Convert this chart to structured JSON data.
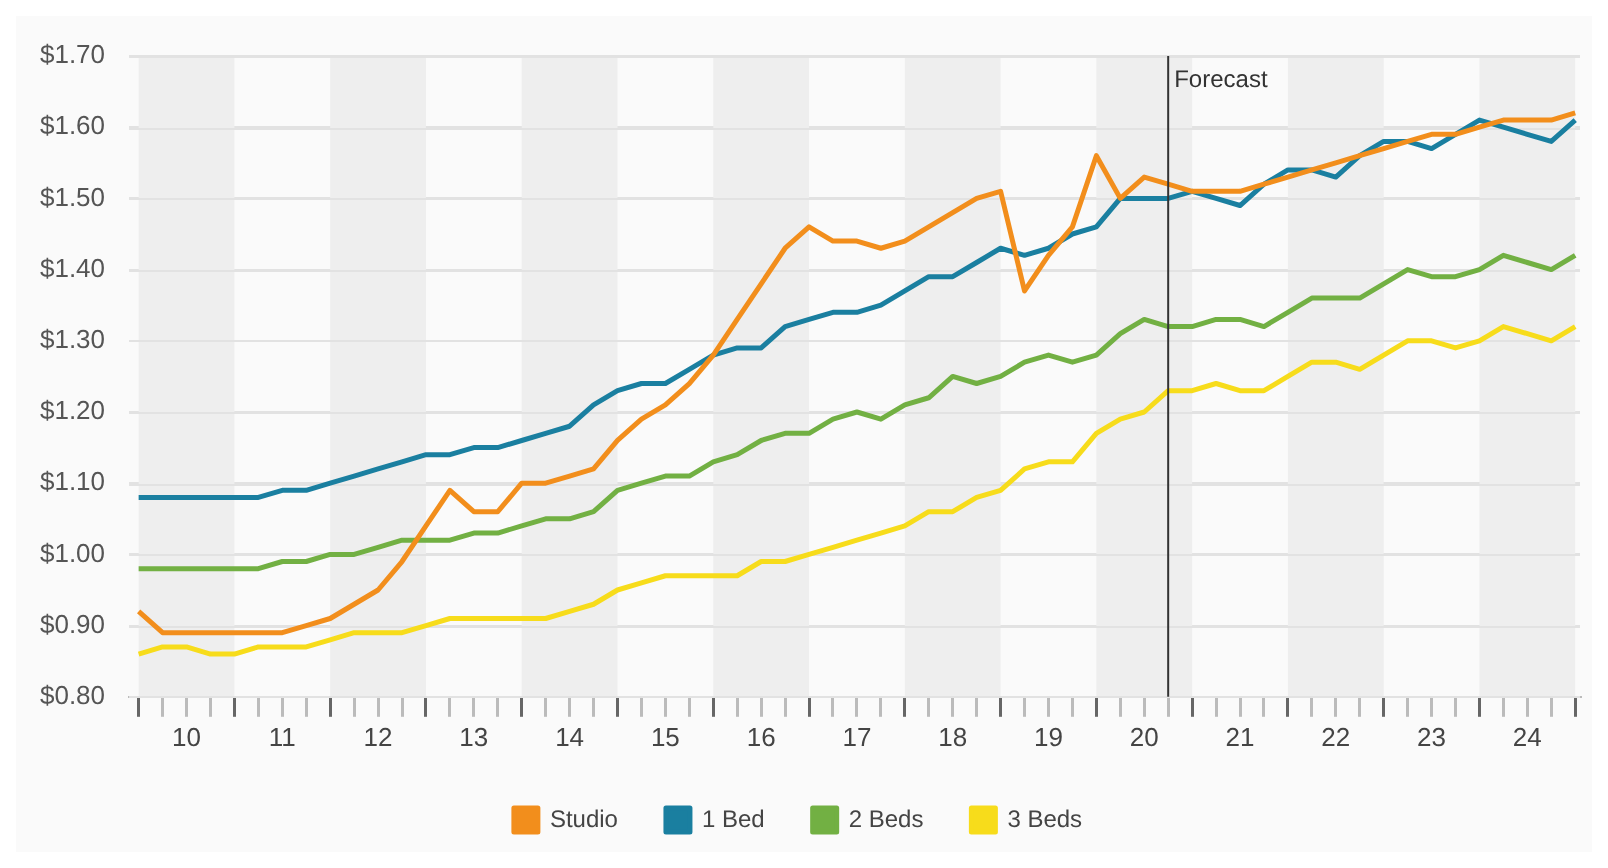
{
  "chart_data": {
    "type": "line",
    "x": [
      10,
      10.25,
      10.5,
      10.75,
      11,
      11.25,
      11.5,
      11.75,
      12,
      12.25,
      12.5,
      12.75,
      13,
      13.25,
      13.5,
      13.75,
      14,
      14.25,
      14.5,
      14.75,
      15,
      15.25,
      15.5,
      15.75,
      16,
      16.25,
      16.5,
      16.75,
      17,
      17.25,
      17.5,
      17.75,
      18,
      18.25,
      18.5,
      18.75,
      19,
      19.25,
      19.5,
      19.75,
      20,
      20.25,
      20.5,
      20.75,
      21,
      21.25,
      21.5,
      21.75,
      22,
      22.25,
      22.5,
      22.75,
      23,
      23.25,
      23.5,
      23.75,
      24,
      24.25,
      24.5,
      24.75,
      25
    ],
    "series": [
      {
        "name": "Studio",
        "color": "#f28e1c",
        "values": [
          0.92,
          0.89,
          0.89,
          0.89,
          0.89,
          0.89,
          0.89,
          0.9,
          0.91,
          0.93,
          0.95,
          0.99,
          1.04,
          1.09,
          1.06,
          1.06,
          1.1,
          1.1,
          1.11,
          1.12,
          1.16,
          1.19,
          1.21,
          1.24,
          1.28,
          1.33,
          1.38,
          1.43,
          1.46,
          1.44,
          1.44,
          1.43,
          1.44,
          1.46,
          1.48,
          1.5,
          1.51,
          1.37,
          1.42,
          1.46,
          1.56,
          1.5,
          1.53,
          1.52,
          1.51,
          1.51,
          1.51,
          1.52,
          1.53,
          1.54,
          1.55,
          1.56,
          1.57,
          1.58,
          1.59,
          1.59,
          1.6,
          1.61,
          1.61,
          1.61,
          1.62
        ]
      },
      {
        "name": "1 Bed",
        "color": "#1a7fa0",
        "values": [
          1.08,
          1.08,
          1.08,
          1.08,
          1.08,
          1.08,
          1.09,
          1.09,
          1.1,
          1.11,
          1.12,
          1.13,
          1.14,
          1.14,
          1.15,
          1.15,
          1.16,
          1.17,
          1.18,
          1.21,
          1.23,
          1.24,
          1.24,
          1.26,
          1.28,
          1.29,
          1.29,
          1.32,
          1.33,
          1.34,
          1.34,
          1.35,
          1.37,
          1.39,
          1.39,
          1.41,
          1.43,
          1.42,
          1.43,
          1.45,
          1.46,
          1.5,
          1.5,
          1.5,
          1.51,
          1.5,
          1.49,
          1.52,
          1.54,
          1.54,
          1.53,
          1.56,
          1.58,
          1.58,
          1.57,
          1.59,
          1.61,
          1.6,
          1.59,
          1.58,
          1.61
        ]
      },
      {
        "name": "2 Beds",
        "color": "#72b043",
        "values": [
          0.98,
          0.98,
          0.98,
          0.98,
          0.98,
          0.98,
          0.99,
          0.99,
          1.0,
          1.0,
          1.01,
          1.02,
          1.02,
          1.02,
          1.03,
          1.03,
          1.04,
          1.05,
          1.05,
          1.06,
          1.09,
          1.1,
          1.11,
          1.11,
          1.13,
          1.14,
          1.16,
          1.17,
          1.17,
          1.19,
          1.2,
          1.19,
          1.21,
          1.22,
          1.25,
          1.24,
          1.25,
          1.27,
          1.28,
          1.27,
          1.28,
          1.31,
          1.33,
          1.32,
          1.32,
          1.33,
          1.33,
          1.32,
          1.34,
          1.36,
          1.36,
          1.36,
          1.38,
          1.4,
          1.39,
          1.39,
          1.4,
          1.42,
          1.41,
          1.4,
          1.42
        ]
      },
      {
        "name": "3 Beds",
        "color": "#f7dc1b",
        "values": [
          0.86,
          0.87,
          0.87,
          0.86,
          0.86,
          0.87,
          0.87,
          0.87,
          0.88,
          0.89,
          0.89,
          0.89,
          0.9,
          0.91,
          0.91,
          0.91,
          0.91,
          0.91,
          0.92,
          0.93,
          0.95,
          0.96,
          0.97,
          0.97,
          0.97,
          0.97,
          0.99,
          0.99,
          1.0,
          1.01,
          1.02,
          1.03,
          1.04,
          1.06,
          1.06,
          1.08,
          1.09,
          1.12,
          1.13,
          1.13,
          1.17,
          1.19,
          1.2,
          1.23,
          1.23,
          1.24,
          1.23,
          1.23,
          1.25,
          1.27,
          1.27,
          1.26,
          1.28,
          1.3,
          1.3,
          1.29,
          1.3,
          1.32,
          1.31,
          1.3,
          1.32
        ]
      }
    ],
    "xlim": [
      9.9,
      25.05
    ],
    "xticks": [
      {
        "value": 10,
        "label": null
      },
      {
        "value": 10.25,
        "label": null
      },
      {
        "value": 10.5,
        "label": "10"
      },
      {
        "value": 10.75,
        "label": null
      },
      {
        "value": 11,
        "label": null
      },
      {
        "value": 11.25,
        "label": null
      },
      {
        "value": 11.5,
        "label": "11"
      },
      {
        "value": 11.75,
        "label": null
      },
      {
        "value": 12,
        "label": null
      },
      {
        "value": 12.25,
        "label": null
      },
      {
        "value": 12.5,
        "label": "12"
      },
      {
        "value": 12.75,
        "label": null
      },
      {
        "value": 13,
        "label": null
      },
      {
        "value": 13.25,
        "label": null
      },
      {
        "value": 13.5,
        "label": "13"
      },
      {
        "value": 13.75,
        "label": null
      },
      {
        "value": 14,
        "label": null
      },
      {
        "value": 14.25,
        "label": null
      },
      {
        "value": 14.5,
        "label": "14"
      },
      {
        "value": 14.75,
        "label": null
      },
      {
        "value": 15,
        "label": null
      },
      {
        "value": 15.25,
        "label": null
      },
      {
        "value": 15.5,
        "label": "15"
      },
      {
        "value": 15.75,
        "label": null
      },
      {
        "value": 16,
        "label": null
      },
      {
        "value": 16.25,
        "label": null
      },
      {
        "value": 16.5,
        "label": "16"
      },
      {
        "value": 16.75,
        "label": null
      },
      {
        "value": 17,
        "label": null
      },
      {
        "value": 17.25,
        "label": null
      },
      {
        "value": 17.5,
        "label": "17"
      },
      {
        "value": 17.75,
        "label": null
      },
      {
        "value": 18,
        "label": null
      },
      {
        "value": 18.25,
        "label": null
      },
      {
        "value": 18.5,
        "label": "18"
      },
      {
        "value": 18.75,
        "label": null
      },
      {
        "value": 19,
        "label": null
      },
      {
        "value": 19.25,
        "label": null
      },
      {
        "value": 19.5,
        "label": "19"
      },
      {
        "value": 19.75,
        "label": null
      },
      {
        "value": 20,
        "label": null
      },
      {
        "value": 20.25,
        "label": null
      },
      {
        "value": 20.5,
        "label": "20"
      },
      {
        "value": 20.75,
        "label": null
      },
      {
        "value": 21,
        "label": null
      },
      {
        "value": 21.25,
        "label": null
      },
      {
        "value": 21.5,
        "label": "21"
      },
      {
        "value": 21.75,
        "label": null
      },
      {
        "value": 22,
        "label": null
      },
      {
        "value": 22.25,
        "label": null
      },
      {
        "value": 22.5,
        "label": "22"
      },
      {
        "value": 22.75,
        "label": null
      },
      {
        "value": 23,
        "label": null
      },
      {
        "value": 23.25,
        "label": null
      },
      {
        "value": 23.5,
        "label": "23"
      },
      {
        "value": 23.75,
        "label": null
      },
      {
        "value": 24,
        "label": null
      },
      {
        "value": 24.25,
        "label": null
      },
      {
        "value": 24.5,
        "label": "24"
      },
      {
        "value": 24.75,
        "label": null
      },
      {
        "value": 25,
        "label": null
      }
    ],
    "ylim": [
      0.8,
      1.7
    ],
    "yticks": [
      {
        "value": 0.8,
        "label": "$0.80"
      },
      {
        "value": 0.9,
        "label": "$0.90"
      },
      {
        "value": 1.0,
        "label": "$1.00"
      },
      {
        "value": 1.1,
        "label": "$1.10"
      },
      {
        "value": 1.2,
        "label": "$1.20"
      },
      {
        "value": 1.3,
        "label": "$1.30"
      },
      {
        "value": 1.4,
        "label": "$1.40"
      },
      {
        "value": 1.5,
        "label": "$1.50"
      },
      {
        "value": 1.6,
        "label": "$1.60"
      },
      {
        "value": 1.7,
        "label": "$1.70"
      }
    ],
    "grid": "y",
    "legend": "bottom",
    "marker": "none",
    "line_style": "solid",
    "ref_lines": [
      {
        "axis": "x",
        "value": 20.75,
        "label": "Forecast",
        "color": "#333333"
      }
    ],
    "bands": [
      {
        "axis": "x",
        "from": 10,
        "to": 11,
        "color": "#eeeeee"
      },
      {
        "axis": "x",
        "from": 12,
        "to": 13,
        "color": "#eeeeee"
      },
      {
        "axis": "x",
        "from": 14,
        "to": 15,
        "color": "#eeeeee"
      },
      {
        "axis": "x",
        "from": 16,
        "to": 17,
        "color": "#eeeeee"
      },
      {
        "axis": "x",
        "from": 18,
        "to": 19,
        "color": "#eeeeee"
      },
      {
        "axis": "x",
        "from": 20,
        "to": 21,
        "color": "#eeeeee"
      },
      {
        "axis": "x",
        "from": 22,
        "to": 23,
        "color": "#eeeeee"
      },
      {
        "axis": "x",
        "from": 24,
        "to": 25,
        "color": "#eeeeee"
      }
    ]
  }
}
